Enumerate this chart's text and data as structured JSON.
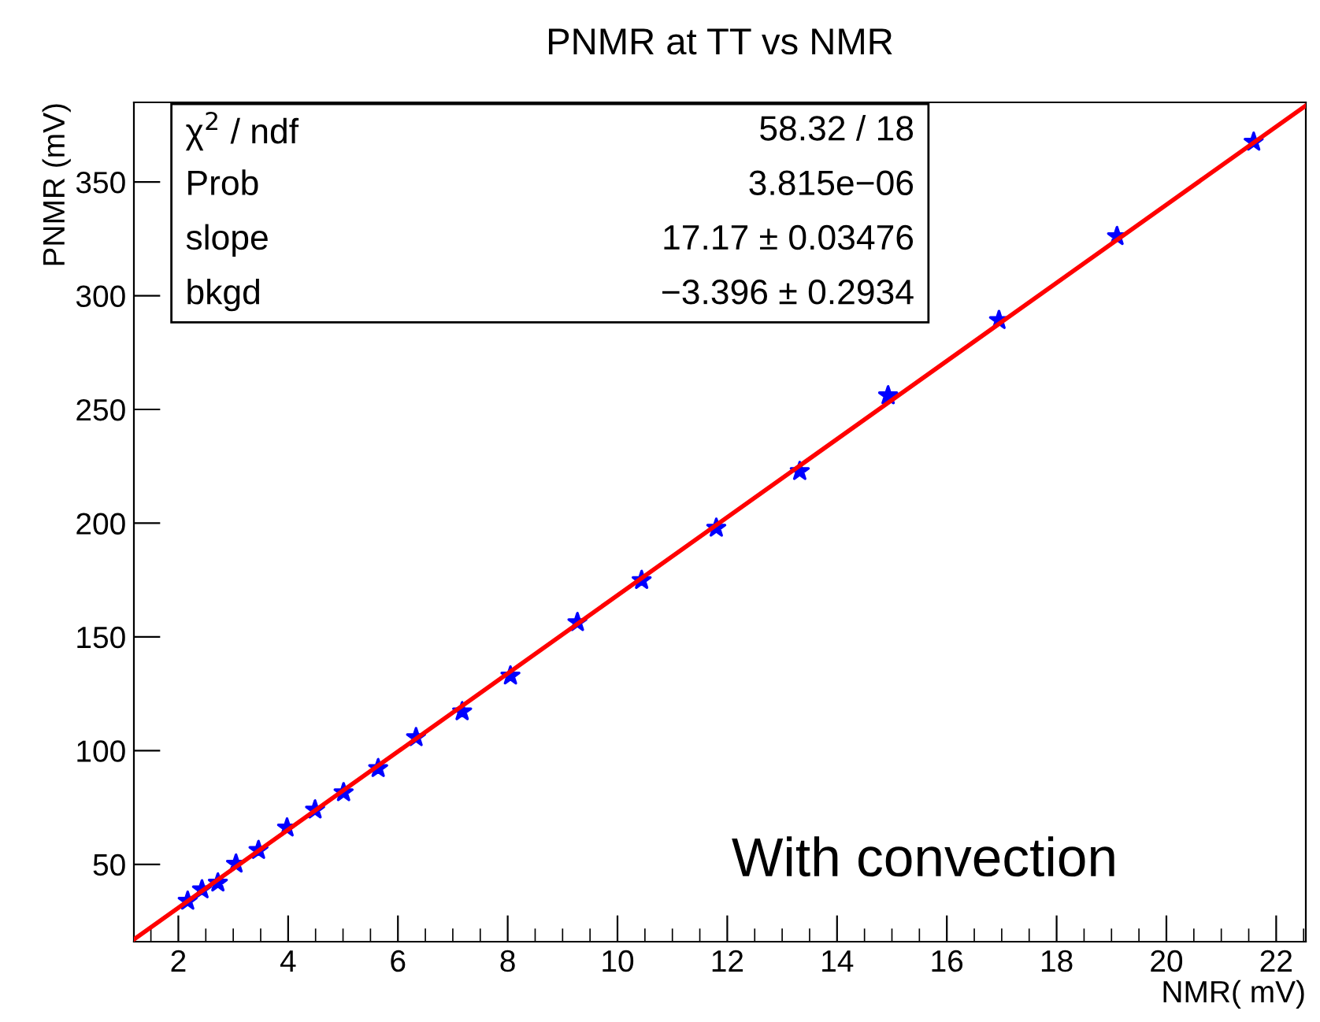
{
  "chart_data": {
    "type": "scatter",
    "title": "PNMR at TT vs NMR",
    "xlabel": "NMR( mV)",
    "ylabel": "PNMR (mV)",
    "xlim": [
      1.19,
      22.54
    ],
    "ylim": [
      16,
      385
    ],
    "xticks": [
      2,
      4,
      6,
      8,
      10,
      12,
      14,
      16,
      18,
      20,
      22
    ],
    "yticks": [
      50,
      100,
      150,
      200,
      250,
      300,
      350
    ],
    "grid": false,
    "marker": "star",
    "series": [
      {
        "color": "#0000ff",
        "x": [
          2.17,
          2.43,
          2.72,
          3.05,
          3.46,
          3.98,
          4.49,
          5.01,
          5.64,
          6.33,
          7.17,
          8.05,
          9.27,
          10.44,
          11.8,
          13.32,
          14.93,
          16.95,
          19.1,
          21.59
        ],
        "values": [
          33.9,
          38.9,
          41.9,
          50.2,
          56.2,
          66.1,
          74,
          81.6,
          92.2,
          105.8,
          117.2,
          132.9,
          156.4,
          174.9,
          197.9,
          222.8,
          256.1,
          289.2,
          326.1,
          367.6
        ]
      },
      {
        "type": "line",
        "color": "#ff0000",
        "line_style": "solid",
        "marker": "none",
        "x": [
          1.19,
          22.54
        ],
        "values": [
          17,
          383.6
        ]
      }
    ],
    "annotations": [
      "χ$^{2}$ / ndf",
      "58.32 / 18",
      "Prob",
      "3.815e−06",
      "slope",
      "17.17 ± 0.03476",
      "bkgd",
      "−3.396 ± 0.2934",
      "With convection"
    ]
  }
}
